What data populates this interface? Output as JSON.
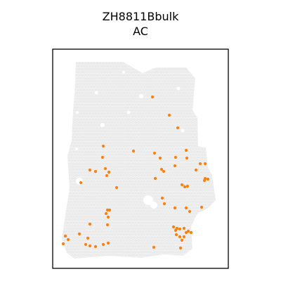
{
  "chart_data": {
    "type": "scatter",
    "title": [
      "ZH8811Bbulk",
      "AC"
    ],
    "xlabel": "",
    "ylabel": "",
    "axis_ticks": false,
    "grid": false,
    "legend": "none",
    "colors": {
      "background_spots": "#ebebeb",
      "highlight_spots": "#ff7f0e",
      "frame": "#000000"
    },
    "series": [
      {
        "role": "highlighted",
        "points": [
          [
            217,
            138
          ],
          [
            241,
            164
          ],
          [
            253,
            182
          ],
          [
            147,
            208
          ],
          [
            190,
            215
          ],
          [
            220,
            218
          ],
          [
            228,
            225
          ],
          [
            146,
            224
          ],
          [
            265,
            214
          ],
          [
            266,
            225
          ],
          [
            250,
            224
          ],
          [
            249,
            236
          ],
          [
            230,
            241
          ],
          [
            233,
            244
          ],
          [
            128,
            242
          ],
          [
            136,
            244
          ],
          [
            150,
            240
          ],
          [
            155,
            245
          ],
          [
            152,
            250
          ],
          [
            285,
            233
          ],
          [
            292,
            233
          ],
          [
            279,
            242
          ],
          [
            292,
            254
          ],
          [
            296,
            255
          ],
          [
            291,
            257
          ],
          [
            115,
            260
          ],
          [
            166,
            267
          ],
          [
            221,
            254
          ],
          [
            259,
            263
          ],
          [
            263,
            266
          ],
          [
            267,
            265
          ],
          [
            231,
            282
          ],
          [
            234,
            290
          ],
          [
            249,
            296
          ],
          [
            265,
            296
          ],
          [
            270,
            301
          ],
          [
            287,
            295
          ],
          [
            153,
            299
          ],
          [
            156,
            299
          ],
          [
            151,
            304
          ],
          [
            154,
            309
          ],
          [
            153,
            320
          ],
          [
            128,
            319
          ],
          [
            247,
            323
          ],
          [
            252,
            325
          ],
          [
            250,
            328
          ],
          [
            256,
            326
          ],
          [
            262,
            325
          ],
          [
            268,
            329
          ],
          [
            272,
            331
          ],
          [
            251,
            334
          ],
          [
            256,
            337
          ],
          [
            262,
            337
          ],
          [
            265,
            331
          ],
          [
            259,
            342
          ],
          [
            93,
            336
          ],
          [
            97,
            341
          ],
          [
            90,
            347
          ],
          [
            113,
            333
          ],
          [
            125,
            339
          ],
          [
            122,
            348
          ],
          [
            128,
            350
          ],
          [
            136,
            351
          ],
          [
            147,
            348
          ],
          [
            154,
            346
          ],
          [
            219,
            352
          ],
          [
            257,
            353
          ]
        ]
      }
    ]
  }
}
